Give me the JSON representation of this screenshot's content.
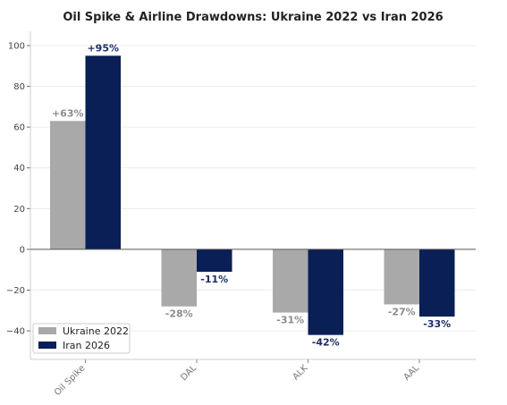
{
  "chart_data": {
    "type": "bar",
    "title": "Oil Spike & Airline Drawdowns: Ukraine 2022 vs Iran 2026",
    "xlabel": "",
    "ylabel": "",
    "categories": [
      "Oil Spike",
      "DAL",
      "ALK",
      "AAL"
    ],
    "series": [
      {
        "name": "Ukraine 2022",
        "color": "#a9a9a9",
        "label_color": "#8c8c8c",
        "values": [
          63,
          -28,
          -31,
          -27
        ],
        "labels": [
          "+63%",
          "-28%",
          "-31%",
          "-27%"
        ]
      },
      {
        "name": "Iran 2026",
        "color": "#0a1f56",
        "label_color": "#1a2f66",
        "values": [
          95,
          -11,
          -42,
          -33
        ],
        "labels": [
          "+95%",
          "-11%",
          "-42%",
          "-33%"
        ]
      }
    ],
    "ylim": [
      -54,
      107
    ],
    "yticks": [
      -40,
      -20,
      0,
      20,
      40,
      60,
      80,
      100
    ],
    "ytick_labels": [
      "−40",
      "−20",
      "0",
      "20",
      "40",
      "60",
      "80",
      "100"
    ],
    "grid": true,
    "legend_position": "bottom-left"
  }
}
